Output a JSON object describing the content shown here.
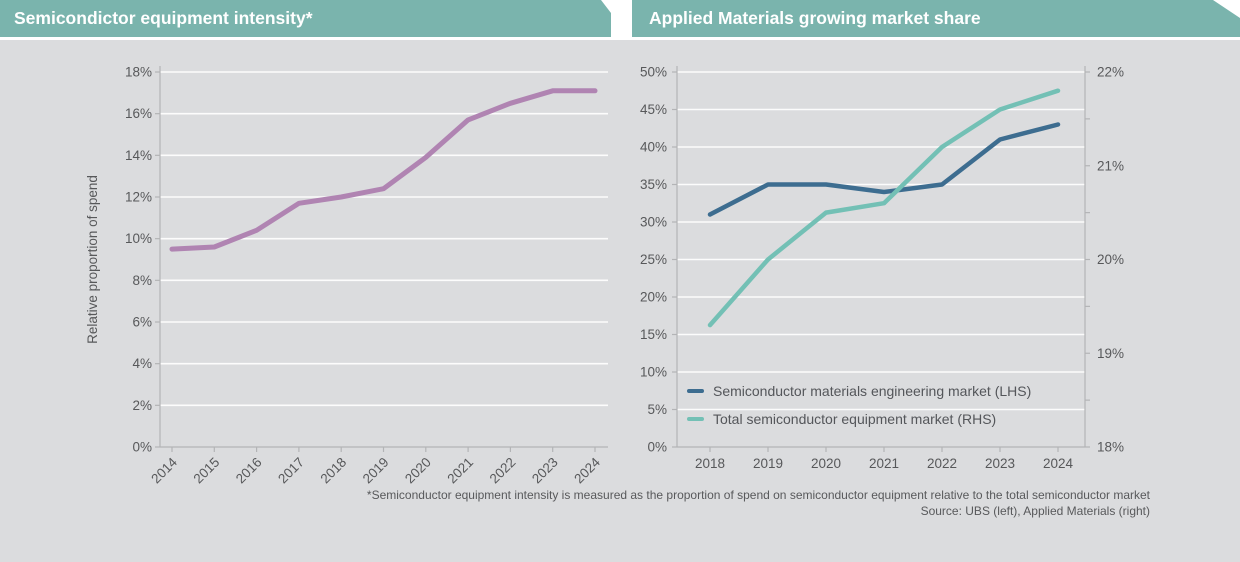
{
  "page": {
    "background": "#dbdcde",
    "accent": "#7ab4ad",
    "gridline_color": "rgba(255,255,255,0.9)",
    "axis_color": "#b3b4b6",
    "text_color": "#57585a"
  },
  "headers": {
    "left": "Semicondictor equipment intensity*",
    "right": "Applied Materials growing market share"
  },
  "footnote": {
    "line1": "*Semiconductor equipment intensity is measured as the proportion of spend on semiconductor equipment relative to the total semiconductor market",
    "line2": "Source: UBS (left), Applied Materials (right)"
  },
  "chart_data": [
    {
      "id": "semiconductor-equipment-intensity",
      "type": "line",
      "title": "Semicondictor equipment intensity*",
      "ylabel": "Relative proportion of spend",
      "x": [
        "2014",
        "2015",
        "2016",
        "2017",
        "2018",
        "2019",
        "2020",
        "2021",
        "2022",
        "2023",
        "2024"
      ],
      "x_tick_rotation": 45,
      "ylim": [
        0,
        18
      ],
      "ytick_step": 2,
      "ytick_format": "percent",
      "grid": true,
      "series": [
        {
          "color": "#b084b2",
          "values": [
            9.5,
            9.6,
            10.4,
            11.7,
            12.0,
            12.4,
            13.9,
            15.7,
            16.5,
            17.1,
            17.1
          ]
        }
      ]
    },
    {
      "id": "applied-materials-market-share",
      "type": "line",
      "title": "Applied Materials growing market share",
      "x": [
        "2018",
        "2019",
        "2020",
        "2021",
        "2022",
        "2023",
        "2024"
      ],
      "x_tick_rotation": 0,
      "grid": true,
      "legend_position": "inside-bottom-left",
      "axes": {
        "left": {
          "ylim": [
            0,
            50
          ],
          "tick_step": 5,
          "format": "percent"
        },
        "right": {
          "ylim": [
            18,
            22
          ],
          "tick_step": 1,
          "minor_tick_step": 0.5,
          "format": "percent"
        }
      },
      "series": [
        {
          "name": "Semiconductor materials engineering market (LHS)",
          "axis": "left",
          "color": "#3d6d90",
          "values": [
            31,
            35,
            35,
            34,
            35,
            41,
            43
          ]
        },
        {
          "name": "Total semiconductor equipment market (RHS)",
          "axis": "right",
          "color": "#73c0b5",
          "values": [
            19.3,
            20.0,
            20.5,
            20.6,
            21.2,
            21.6,
            21.8
          ]
        }
      ]
    }
  ]
}
